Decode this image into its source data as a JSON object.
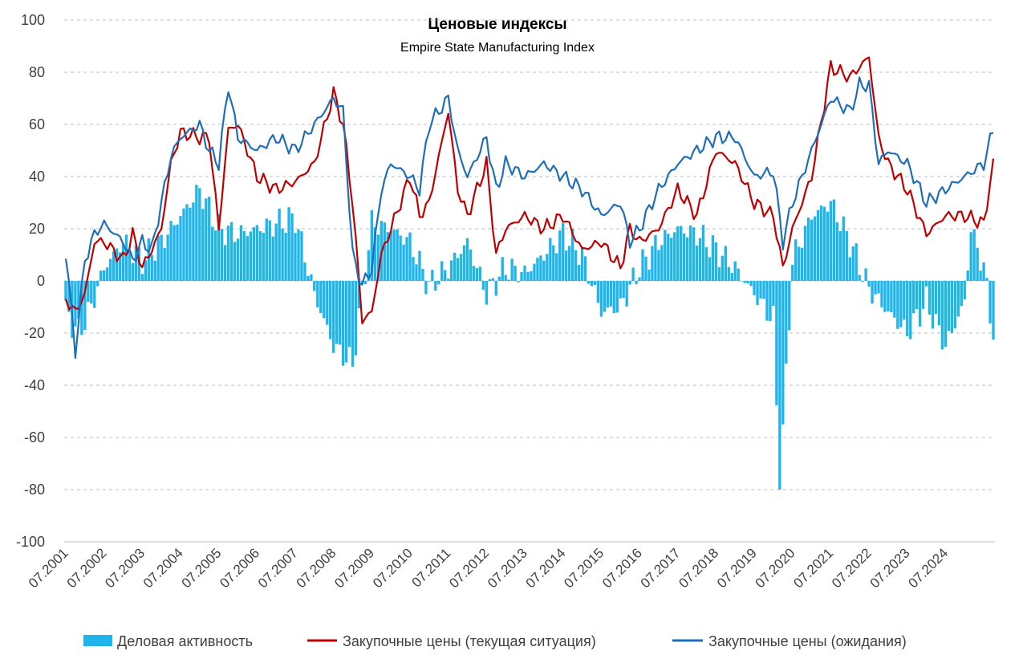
{
  "chart_data": {
    "type": "bar+line",
    "title": "Ценовые индексы",
    "subtitle": "Empire State Manufacturing Index",
    "xlabel": "",
    "ylabel": "",
    "ylim": [
      -100,
      100
    ],
    "yticks": [
      100,
      80,
      60,
      40,
      20,
      0,
      -20,
      -40,
      -60,
      -80,
      -100
    ],
    "x_tick_labels": [
      "07.2001",
      "07.2002",
      "07.2003",
      "07.2004",
      "07.2005",
      "07.2006",
      "07.2007",
      "07.2008",
      "07.2009",
      "07.2010",
      "07.2011",
      "07.2012",
      "07.2013",
      "07.2014",
      "07.2015",
      "07.2016",
      "07.2017",
      "07.2018",
      "07.2019",
      "07.2020",
      "07.2021",
      "07.2022",
      "07.2023",
      "07.2024"
    ],
    "grid": "horizontal dashed",
    "legend_position": "bottom",
    "colors": {
      "bars": "#1fb5ea",
      "current": "#c00000",
      "expected": "#1f6fb8"
    },
    "series": [
      {
        "name": "Деловая активность",
        "type": "bar",
        "start": "2001-07",
        "interval": "month",
        "points": [
          [
            0,
            -12
          ],
          [
            4,
            -20
          ],
          [
            8,
            -10
          ],
          [
            12,
            5
          ],
          [
            18,
            15
          ],
          [
            24,
            8
          ],
          [
            30,
            15
          ],
          [
            36,
            25
          ],
          [
            42,
            35
          ],
          [
            48,
            20
          ],
          [
            54,
            18
          ],
          [
            60,
            20
          ],
          [
            66,
            22
          ],
          [
            72,
            24
          ],
          [
            78,
            -5
          ],
          [
            84,
            -25
          ],
          [
            90,
            -32
          ],
          [
            96,
            22
          ],
          [
            102,
            20
          ],
          [
            108,
            15
          ],
          [
            114,
            -2
          ],
          [
            120,
            5
          ],
          [
            126,
            15
          ],
          [
            132,
            -5
          ],
          [
            138,
            5
          ],
          [
            144,
            3
          ],
          [
            150,
            10
          ],
          [
            156,
            18
          ],
          [
            162,
            10
          ],
          [
            168,
            -12
          ],
          [
            174,
            -10
          ],
          [
            180,
            5
          ],
          [
            186,
            15
          ],
          [
            192,
            20
          ],
          [
            198,
            18
          ],
          [
            204,
            12
          ],
          [
            210,
            5
          ],
          [
            216,
            -5
          ],
          [
            222,
            -15
          ],
          [
            224,
            -80
          ],
          [
            228,
            8
          ],
          [
            234,
            25
          ],
          [
            240,
            30
          ],
          [
            246,
            15
          ],
          [
            252,
            -3
          ],
          [
            258,
            -12
          ],
          [
            264,
            -20
          ],
          [
            270,
            -8
          ],
          [
            276,
            -25
          ],
          [
            282,
            -8
          ],
          [
            284,
            20
          ],
          [
            288,
            5
          ],
          [
            291,
            -20
          ]
        ]
      },
      {
        "name": "Закупочные цены (текущая ситуация)",
        "type": "line",
        "start": "2001-07",
        "interval": "month",
        "points": [
          [
            0,
            -7
          ],
          [
            3,
            -12
          ],
          [
            6,
            -5
          ],
          [
            9,
            15
          ],
          [
            12,
            15
          ],
          [
            18,
            8
          ],
          [
            21,
            18
          ],
          [
            24,
            5
          ],
          [
            27,
            12
          ],
          [
            30,
            20
          ],
          [
            33,
            45
          ],
          [
            36,
            57
          ],
          [
            42,
            55
          ],
          [
            45,
            55
          ],
          [
            48,
            20
          ],
          [
            51,
            58
          ],
          [
            54,
            60
          ],
          [
            60,
            40
          ],
          [
            66,
            35
          ],
          [
            72,
            38
          ],
          [
            78,
            45
          ],
          [
            84,
            72
          ],
          [
            87,
            60
          ],
          [
            90,
            30
          ],
          [
            93,
            -15
          ],
          [
            96,
            -12
          ],
          [
            99,
            10
          ],
          [
            102,
            20
          ],
          [
            108,
            40
          ],
          [
            111,
            25
          ],
          [
            114,
            30
          ],
          [
            120,
            65
          ],
          [
            123,
            35
          ],
          [
            126,
            25
          ],
          [
            132,
            45
          ],
          [
            135,
            10
          ],
          [
            138,
            20
          ],
          [
            144,
            25
          ],
          [
            150,
            20
          ],
          [
            156,
            25
          ],
          [
            162,
            12
          ],
          [
            168,
            15
          ],
          [
            174,
            5
          ],
          [
            177,
            20
          ],
          [
            180,
            15
          ],
          [
            186,
            20
          ],
          [
            192,
            35
          ],
          [
            198,
            25
          ],
          [
            204,
            50
          ],
          [
            210,
            45
          ],
          [
            216,
            30
          ],
          [
            222,
            25
          ],
          [
            225,
            5
          ],
          [
            228,
            20
          ],
          [
            234,
            40
          ],
          [
            240,
            82
          ],
          [
            246,
            78
          ],
          [
            249,
            82
          ],
          [
            252,
            86
          ],
          [
            255,
            55
          ],
          [
            258,
            45
          ],
          [
            264,
            35
          ],
          [
            270,
            18
          ],
          [
            276,
            25
          ],
          [
            282,
            25
          ],
          [
            288,
            22
          ],
          [
            291,
            45
          ]
        ]
      },
      {
        "name": "Закупочные цены (ожидания)",
        "type": "line",
        "start": "2001-07",
        "interval": "month",
        "points": [
          [
            0,
            11
          ],
          [
            3,
            -27
          ],
          [
            6,
            8
          ],
          [
            9,
            18
          ],
          [
            12,
            22
          ],
          [
            18,
            15
          ],
          [
            21,
            8
          ],
          [
            24,
            15
          ],
          [
            27,
            12
          ],
          [
            30,
            30
          ],
          [
            33,
            48
          ],
          [
            36,
            55
          ],
          [
            42,
            60
          ],
          [
            45,
            50
          ],
          [
            48,
            45
          ],
          [
            51,
            75
          ],
          [
            54,
            55
          ],
          [
            60,
            50
          ],
          [
            66,
            55
          ],
          [
            72,
            50
          ],
          [
            78,
            60
          ],
          [
            84,
            70
          ],
          [
            87,
            65
          ],
          [
            90,
            10
          ],
          [
            93,
            -2
          ],
          [
            96,
            5
          ],
          [
            99,
            35
          ],
          [
            102,
            45
          ],
          [
            108,
            40
          ],
          [
            111,
            35
          ],
          [
            114,
            60
          ],
          [
            120,
            70
          ],
          [
            123,
            50
          ],
          [
            126,
            40
          ],
          [
            132,
            55
          ],
          [
            135,
            35
          ],
          [
            138,
            45
          ],
          [
            144,
            40
          ],
          [
            150,
            45
          ],
          [
            156,
            40
          ],
          [
            162,
            35
          ],
          [
            168,
            25
          ],
          [
            174,
            30
          ],
          [
            177,
            15
          ],
          [
            180,
            20
          ],
          [
            186,
            35
          ],
          [
            192,
            45
          ],
          [
            198,
            50
          ],
          [
            204,
            55
          ],
          [
            210,
            55
          ],
          [
            216,
            40
          ],
          [
            222,
            42
          ],
          [
            225,
            15
          ],
          [
            228,
            30
          ],
          [
            234,
            50
          ],
          [
            240,
            70
          ],
          [
            246,
            65
          ],
          [
            249,
            75
          ],
          [
            252,
            75
          ],
          [
            255,
            45
          ],
          [
            258,
            50
          ],
          [
            264,
            45
          ],
          [
            270,
            30
          ],
          [
            276,
            35
          ],
          [
            282,
            40
          ],
          [
            288,
            45
          ],
          [
            291,
            58
          ]
        ]
      }
    ]
  }
}
